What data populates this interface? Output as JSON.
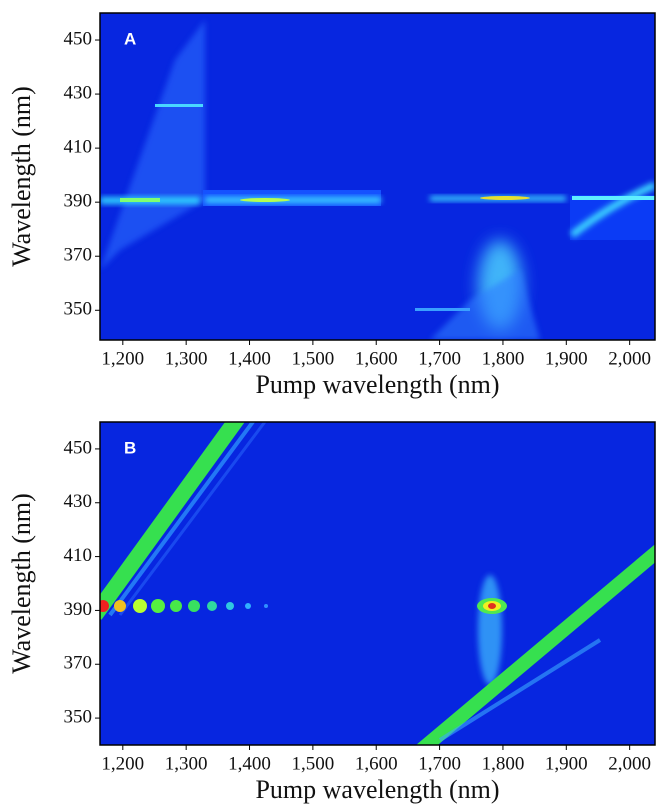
{
  "chart_data": [
    {
      "type": "heatmap",
      "label": "A",
      "xlabel": "Pump wavelength (nm)",
      "ylabel": "Wavelength (nm)",
      "xlim": [
        1164,
        2040
      ],
      "ylim": [
        339,
        460
      ],
      "xticks": [
        {
          "value": 1200,
          "label": "1,200"
        },
        {
          "value": 1300,
          "label": "1,300"
        },
        {
          "value": 1400,
          "label": "1,400"
        },
        {
          "value": 1500,
          "label": "1,500"
        },
        {
          "value": 1600,
          "label": "1,600"
        },
        {
          "value": 1700,
          "label": "1,700"
        },
        {
          "value": 1800,
          "label": "1,800"
        },
        {
          "value": 1900,
          "label": "1,900"
        },
        {
          "value": 2000,
          "label": "2,000"
        }
      ],
      "yticks": [
        350,
        370,
        390,
        410,
        430,
        450
      ]
    },
    {
      "type": "heatmap",
      "label": "B",
      "xlabel": "Pump wavelength (nm)",
      "ylabel": "Wavelength (nm)",
      "xlim": [
        1164,
        2040
      ],
      "ylim": [
        340,
        460
      ],
      "xticks": [
        {
          "value": 1200,
          "label": "1,200"
        },
        {
          "value": 1300,
          "label": "1,300"
        },
        {
          "value": 1400,
          "label": "1,400"
        },
        {
          "value": 1500,
          "label": "1,500"
        },
        {
          "value": 1600,
          "label": "1,600"
        },
        {
          "value": 1700,
          "label": "1,700"
        },
        {
          "value": 1800,
          "label": "1,800"
        },
        {
          "value": 1900,
          "label": "1,900"
        },
        {
          "value": 2000,
          "label": "2,000"
        }
      ],
      "yticks": [
        350,
        370,
        390,
        410,
        430,
        450
      ]
    }
  ]
}
